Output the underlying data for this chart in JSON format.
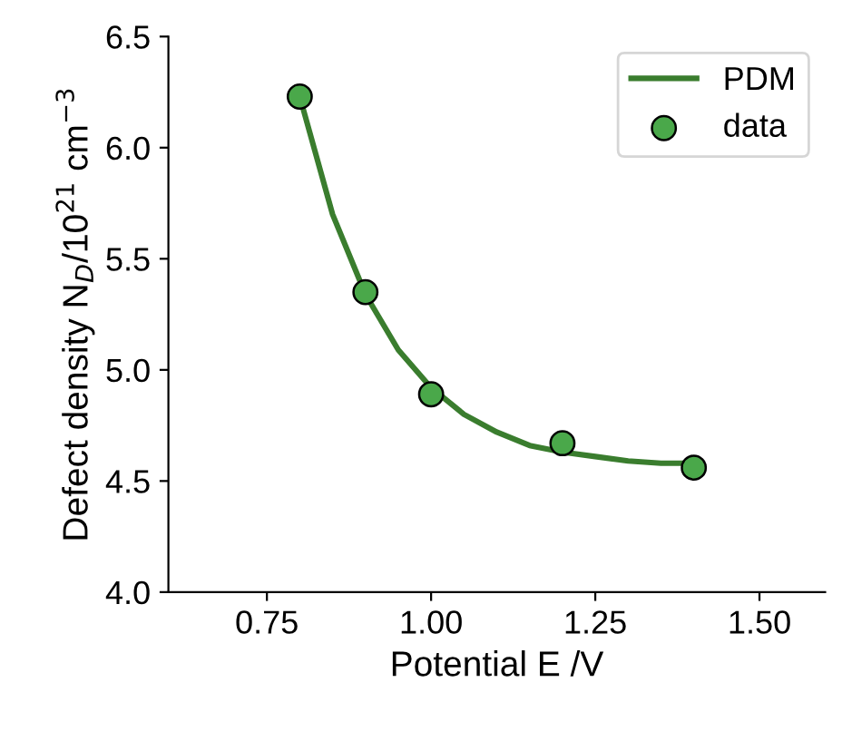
{
  "chart_data": {
    "type": "line",
    "xlabel": "Potential E /V",
    "ylabel": "Defect density N$_{D}$/10$^{21}$ cm$^{−3}$",
    "xlim": [
      0.6,
      1.6
    ],
    "xticks": [
      {
        "value": 0.75,
        "label": "0.75"
      },
      {
        "value": 1.0,
        "label": "1.00"
      },
      {
        "value": 1.25,
        "label": "1.25"
      },
      {
        "value": 1.5,
        "label": "1.50"
      }
    ],
    "ylim": [
      4.0,
      6.5
    ],
    "yticks": [
      {
        "value": 4.0,
        "label": "4.0"
      },
      {
        "value": 4.5,
        "label": "4.5"
      },
      {
        "value": 5.0,
        "label": "5.0"
      },
      {
        "value": 5.5,
        "label": "5.5"
      },
      {
        "value": 6.0,
        "label": "6.0"
      },
      {
        "value": 6.5,
        "label": "6.5"
      }
    ],
    "grid": false,
    "legend": "top right",
    "series": [
      {
        "name": "PDM",
        "color": "#3a7d2e",
        "marker": "none",
        "x": [
          0.8,
          0.85,
          0.9,
          0.95,
          1.0,
          1.05,
          1.1,
          1.15,
          1.2,
          1.25,
          1.3,
          1.35,
          1.4
        ],
        "values": [
          6.23,
          5.7,
          5.34,
          5.09,
          4.92,
          4.8,
          4.72,
          4.66,
          4.63,
          4.61,
          4.59,
          4.58,
          4.58
        ]
      },
      {
        "name": "data",
        "type": "scatter",
        "color": "#4aa84a",
        "marker": "circle",
        "x": [
          0.8,
          0.9,
          1.0,
          1.2,
          1.4
        ],
        "values": [
          6.23,
          5.35,
          4.89,
          4.67,
          4.56
        ]
      }
    ]
  }
}
